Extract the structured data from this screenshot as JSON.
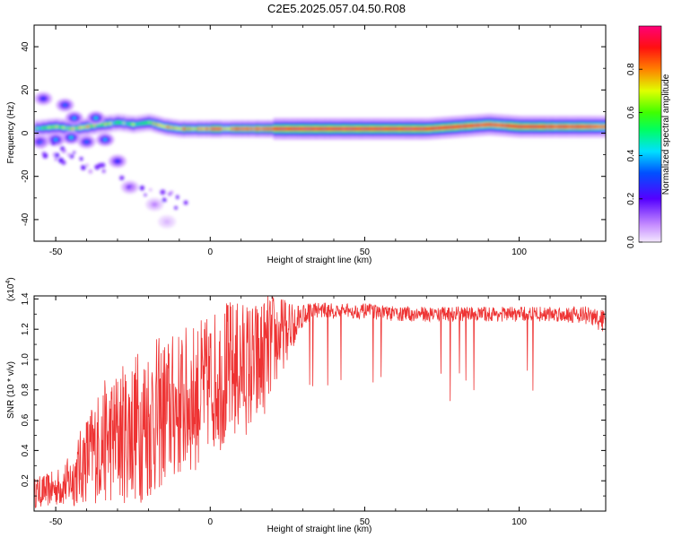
{
  "title": "C2E5.2025.057.04.50.R08",
  "chart_data": [
    {
      "type": "heatmap",
      "title": "C2E5.2025.057.04.50.R08",
      "xlabel": "Height of straight line (km)",
      "ylabel": "Frequency (Hz)",
      "xlim": [
        -57,
        128
      ],
      "ylim": [
        -50,
        50
      ],
      "xticks": [
        -50,
        0,
        50,
        100
      ],
      "xtick_labels": [
        "-50",
        "0",
        "50",
        "100"
      ],
      "yticks": [
        -40,
        -20,
        0,
        20,
        40
      ],
      "ytick_labels": [
        "-40",
        "-20",
        "0",
        "20",
        "40"
      ],
      "colorbar": {
        "label": "Normalized spectral amplitude",
        "range": [
          0,
          1
        ],
        "ticks": [
          0.0,
          0.2,
          0.4,
          0.6,
          0.8
        ],
        "tick_labels": [
          "0.0",
          "0.2",
          "0.4",
          "0.6",
          "0.8"
        ]
      },
      "ridge": {
        "x": [
          -57,
          -50,
          -45,
          -40,
          -35,
          -30,
          -25,
          -20,
          -15,
          -10,
          -5,
          0,
          5,
          10,
          15,
          20,
          30,
          40,
          50,
          60,
          70,
          80,
          90,
          100,
          110,
          120,
          128
        ],
        "freq": [
          2,
          3,
          2,
          3,
          4,
          5,
          4,
          5,
          3,
          2,
          2,
          2,
          2,
          2,
          2,
          2,
          2,
          2,
          2,
          2,
          2,
          3,
          4,
          3,
          3,
          3,
          3
        ],
        "amp": [
          0.5,
          0.6,
          0.6,
          0.65,
          0.6,
          0.55,
          0.55,
          0.6,
          0.7,
          0.75,
          0.8,
          0.85,
          0.85,
          0.9,
          0.95,
          0.95,
          0.95,
          0.95,
          0.95,
          0.95,
          0.95,
          0.9,
          0.85,
          0.9,
          0.85,
          0.85,
          0.8
        ]
      },
      "blobs": [
        {
          "x": -54,
          "f": 16,
          "amp": 0.3
        },
        {
          "x": -47,
          "f": 13,
          "amp": 0.35
        },
        {
          "x": -44,
          "f": 7,
          "amp": 0.4
        },
        {
          "x": -37,
          "f": 7,
          "amp": 0.45
        },
        {
          "x": -55,
          "f": -4,
          "amp": 0.35
        },
        {
          "x": -50,
          "f": -3,
          "amp": 0.4
        },
        {
          "x": -45,
          "f": -2,
          "amp": 0.45
        },
        {
          "x": -40,
          "f": -4,
          "amp": 0.35
        },
        {
          "x": -34,
          "f": -3,
          "amp": 0.4
        },
        {
          "x": -30,
          "f": -13,
          "amp": 0.3
        },
        {
          "x": -26,
          "f": -25,
          "amp": 0.2
        },
        {
          "x": -18,
          "f": -33,
          "amp": 0.1
        },
        {
          "x": -14,
          "f": -41,
          "amp": 0.05
        }
      ]
    },
    {
      "type": "line",
      "xlabel": "Height of straight line (km)",
      "ylabel": "SNR (10 * v/v)",
      "y_scale_label": "(x10",
      "y_scale_exponent": "4",
      "xlim": [
        -57,
        128
      ],
      "ylim": [
        0.0,
        1.42
      ],
      "xticks": [
        -50,
        0,
        50,
        100
      ],
      "xtick_labels": [
        "-50",
        "0",
        "50",
        "100"
      ],
      "yticks": [
        0.2,
        0.4,
        0.6,
        0.8,
        1.0,
        1.2,
        1.4
      ],
      "ytick_labels": [
        "0.2",
        "0.4",
        "0.6",
        "0.8",
        "1.0",
        "1.2",
        "1.4"
      ],
      "color": "#ee3333",
      "envelope": {
        "x": [
          -57,
          -50,
          -45,
          -40,
          -35,
          -30,
          -25,
          -20,
          -15,
          -10,
          -5,
          0,
          5,
          10,
          15,
          20,
          25,
          30,
          35,
          40,
          50,
          60,
          70,
          80,
          90,
          100,
          110,
          120,
          128
        ],
        "mean": [
          0.12,
          0.15,
          0.2,
          0.35,
          0.45,
          0.5,
          0.55,
          0.6,
          0.65,
          0.7,
          0.75,
          0.85,
          0.9,
          0.95,
          0.95,
          1.1,
          1.2,
          1.3,
          1.33,
          1.32,
          1.32,
          1.3,
          1.3,
          1.3,
          1.3,
          1.3,
          1.3,
          1.3,
          1.25
        ],
        "spread": [
          0.1,
          0.12,
          0.18,
          0.3,
          0.4,
          0.45,
          0.5,
          0.55,
          0.5,
          0.5,
          0.5,
          0.45,
          0.5,
          0.45,
          0.45,
          0.35,
          0.2,
          0.08,
          0.05,
          0.05,
          0.05,
          0.05,
          0.05,
          0.05,
          0.05,
          0.05,
          0.05,
          0.06,
          0.08
        ]
      }
    }
  ]
}
